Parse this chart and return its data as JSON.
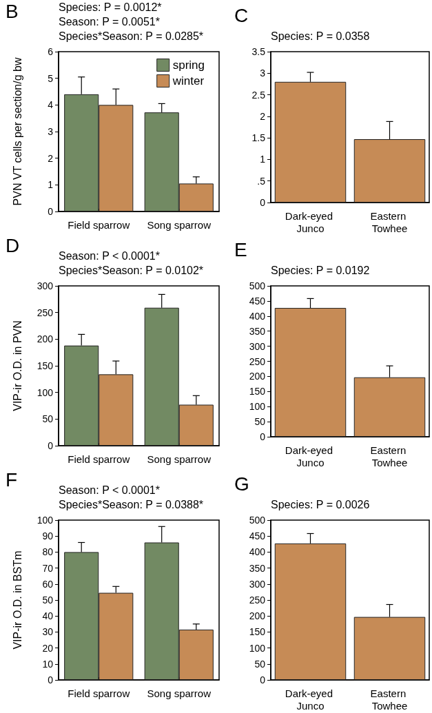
{
  "chart_data": [
    {
      "type": "bar",
      "title": "B",
      "annotations": [
        "Species: P = 0.0012*",
        "Season: P = 0.0051*",
        "Species*Season: P = 0.0285*"
      ],
      "ylabel": "PVN VT cells per section/g bw",
      "categories": [
        "Field sparrow",
        "Song sparrow"
      ],
      "series": [
        {
          "name": "spring",
          "color": "#728a63",
          "values": [
            4.4,
            3.72
          ],
          "errors": [
            [
              4.4,
              5.05
            ],
            [
              3.72,
              4.05
            ]
          ]
        },
        {
          "name": "winter",
          "color": "#c68b56",
          "values": [
            4.0,
            1.05
          ],
          "errors": [
            [
              4.0,
              4.6
            ],
            [
              1.05,
              1.3
            ]
          ]
        }
      ],
      "ylim": [
        0,
        6
      ],
      "yticks": [
        0,
        1,
        2,
        3,
        4,
        5,
        6
      ],
      "legend": "top right"
    },
    {
      "type": "bar",
      "title": "C",
      "annotations": [
        "Species: P = 0.0358"
      ],
      "categories": [
        "Dark-eyed Junco",
        "Eastern Towhee"
      ],
      "series": [
        {
          "color": "#c68b56",
          "values": [
            2.8,
            1.47
          ],
          "errors": [
            [
              2.8,
              3.02
            ],
            [
              1.47,
              1.88
            ]
          ]
        }
      ],
      "ylim": [
        0,
        3.5
      ],
      "yticks": [
        0,
        {
          "value": 0.5,
          "label": ".5"
        },
        1,
        1.5,
        2,
        2.5,
        3,
        3.5
      ]
    },
    {
      "type": "bar",
      "title": "D",
      "annotations": [
        "Season: P < 0.0001*",
        "Species*Season: P = 0.0102*"
      ],
      "ylabel": "VIP-ir O.D. in PVN",
      "categories": [
        "Field sparrow",
        "Song sparrow"
      ],
      "series": [
        {
          "color": "#728a63",
          "values": [
            188,
            259
          ],
          "errors": [
            [
              188,
              209
            ],
            [
              259,
              284
            ]
          ]
        },
        {
          "color": "#c68b56",
          "values": [
            134,
            77
          ],
          "errors": [
            [
              134,
              159
            ],
            [
              77,
              94
            ]
          ]
        }
      ],
      "ylim": [
        0,
        300
      ],
      "yticks": [
        0,
        50,
        100,
        150,
        200,
        250,
        300
      ]
    },
    {
      "type": "bar",
      "title": "E",
      "annotations": [
        "Species: P = 0.0192"
      ],
      "categories": [
        "Dark-eyed Junco",
        "Eastern Towhee"
      ],
      "series": [
        {
          "color": "#c68b56",
          "values": [
            427,
            197
          ],
          "errors": [
            [
              427,
              458
            ],
            [
              197,
              235
            ]
          ]
        }
      ],
      "ylim": [
        0,
        500
      ],
      "yticks": [
        0,
        50,
        100,
        150,
        200,
        250,
        300,
        350,
        400,
        450,
        500
      ]
    },
    {
      "type": "bar",
      "title": "F",
      "annotations": [
        "Season: P < 0.0001*",
        "Species*Season: P = 0.0388*"
      ],
      "ylabel": "VIP-ir O.D. in BSTm",
      "categories": [
        "Field sparrow",
        "Song sparrow"
      ],
      "series": [
        {
          "color": "#728a63",
          "values": [
            80,
            86
          ],
          "errors": [
            [
              80,
              86
            ],
            [
              86,
              96
            ]
          ]
        },
        {
          "color": "#c68b56",
          "values": [
            54.5,
            31.5
          ],
          "errors": [
            [
              54.5,
              58.5
            ],
            [
              31.5,
              35
            ]
          ]
        }
      ],
      "ylim": [
        0,
        100
      ],
      "yticks": [
        0,
        10,
        20,
        30,
        40,
        50,
        60,
        70,
        80,
        90,
        100
      ]
    },
    {
      "type": "bar",
      "title": "G",
      "annotations": [
        "Species: P = 0.0026"
      ],
      "categories": [
        "Dark-eyed Junco",
        "Eastern Towhee"
      ],
      "series": [
        {
          "color": "#c68b56",
          "values": [
            427,
            197
          ],
          "errors": [
            [
              427,
              458
            ],
            [
              197,
              236
            ]
          ]
        }
      ],
      "ylim": [
        0,
        500
      ],
      "yticks": [
        0,
        50,
        100,
        150,
        200,
        250,
        300,
        350,
        400,
        450,
        500
      ]
    }
  ]
}
